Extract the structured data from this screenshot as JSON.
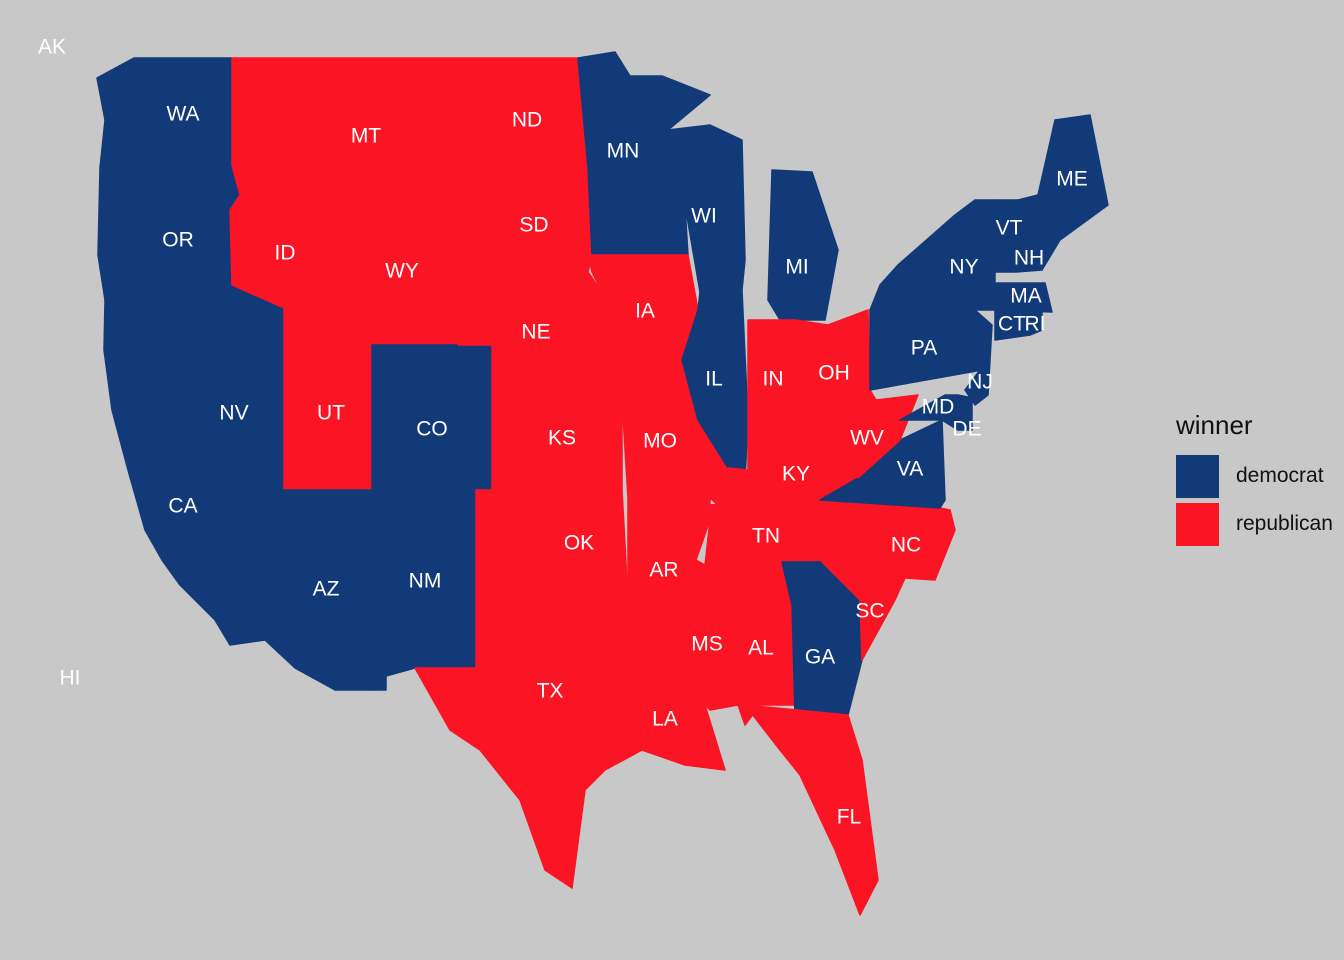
{
  "colors": {
    "background": "#c8c8c8",
    "democrat": "#123a78",
    "republican": "#fb1424",
    "label": "#ffffff"
  },
  "legend": {
    "title": "winner",
    "items": [
      {
        "key": "democrat",
        "label": "democrat"
      },
      {
        "key": "republican",
        "label": "republican"
      }
    ]
  },
  "states": [
    {
      "abbr": "AK",
      "winner": ""
    },
    {
      "abbr": "HI",
      "winner": ""
    },
    {
      "abbr": "WA",
      "winner": "democrat"
    },
    {
      "abbr": "OR",
      "winner": "democrat"
    },
    {
      "abbr": "CA",
      "winner": "democrat"
    },
    {
      "abbr": "NV",
      "winner": "democrat"
    },
    {
      "abbr": "ID",
      "winner": "republican"
    },
    {
      "abbr": "MT",
      "winner": "republican"
    },
    {
      "abbr": "WY",
      "winner": "republican"
    },
    {
      "abbr": "UT",
      "winner": "republican"
    },
    {
      "abbr": "AZ",
      "winner": "democrat"
    },
    {
      "abbr": "CO",
      "winner": "democrat"
    },
    {
      "abbr": "NM",
      "winner": "democrat"
    },
    {
      "abbr": "ND",
      "winner": "republican"
    },
    {
      "abbr": "SD",
      "winner": "republican"
    },
    {
      "abbr": "NE",
      "winner": "republican"
    },
    {
      "abbr": "KS",
      "winner": "republican"
    },
    {
      "abbr": "OK",
      "winner": "republican"
    },
    {
      "abbr": "TX",
      "winner": "republican"
    },
    {
      "abbr": "MN",
      "winner": "democrat"
    },
    {
      "abbr": "IA",
      "winner": "republican"
    },
    {
      "abbr": "MO",
      "winner": "republican"
    },
    {
      "abbr": "AR",
      "winner": "republican"
    },
    {
      "abbr": "LA",
      "winner": "republican"
    },
    {
      "abbr": "WI",
      "winner": "democrat"
    },
    {
      "abbr": "IL",
      "winner": "democrat"
    },
    {
      "abbr": "MI",
      "winner": "democrat"
    },
    {
      "abbr": "IN",
      "winner": "republican"
    },
    {
      "abbr": "OH",
      "winner": "republican"
    },
    {
      "abbr": "KY",
      "winner": "republican"
    },
    {
      "abbr": "TN",
      "winner": "republican"
    },
    {
      "abbr": "MS",
      "winner": "republican"
    },
    {
      "abbr": "AL",
      "winner": "republican"
    },
    {
      "abbr": "GA",
      "winner": "democrat"
    },
    {
      "abbr": "FL",
      "winner": "republican"
    },
    {
      "abbr": "SC",
      "winner": "republican"
    },
    {
      "abbr": "NC",
      "winner": "republican"
    },
    {
      "abbr": "VA",
      "winner": "democrat"
    },
    {
      "abbr": "WV",
      "winner": "republican"
    },
    {
      "abbr": "PA",
      "winner": "democrat"
    },
    {
      "abbr": "NY",
      "winner": "democrat"
    },
    {
      "abbr": "VT",
      "winner": "democrat"
    },
    {
      "abbr": "NH",
      "winner": "democrat"
    },
    {
      "abbr": "ME",
      "winner": "democrat"
    },
    {
      "abbr": "MA",
      "winner": "democrat"
    },
    {
      "abbr": "CT",
      "winner": "democrat"
    },
    {
      "abbr": "RI",
      "winner": "democrat"
    },
    {
      "abbr": "NJ",
      "winner": "democrat"
    },
    {
      "abbr": "DE",
      "winner": "democrat"
    },
    {
      "abbr": "MD",
      "winner": "democrat"
    }
  ]
}
